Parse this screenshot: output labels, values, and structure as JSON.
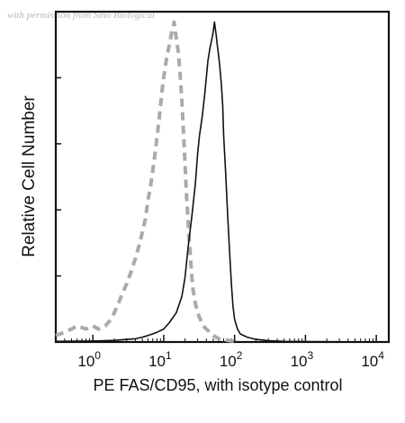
{
  "watermark": "with permission from Sino Biological",
  "chart_data": {
    "type": "line",
    "title": "",
    "xlabel": "PE FAS/CD95, with isotype control",
    "ylabel": "Relative Cell Number",
    "x_scale": "log",
    "xlim": [
      0.3,
      15000
    ],
    "ylim": [
      0,
      100
    ],
    "x_ticks": [
      {
        "value": 1,
        "base": "10",
        "exp": "0"
      },
      {
        "value": 10,
        "base": "10",
        "exp": "1"
      },
      {
        "value": 100,
        "base": "10",
        "exp": "2"
      },
      {
        "value": 1000,
        "base": "10",
        "exp": "3"
      },
      {
        "value": 10000,
        "base": "10",
        "exp": "4"
      }
    ],
    "grid": false,
    "colors": {
      "stained": "#111111",
      "isotype": "#aaaaaa",
      "frame": "#111111"
    },
    "series": [
      {
        "line_style": "solid",
        "color": "#111111",
        "x": [
          0.3,
          1,
          2,
          3,
          4,
          5,
          6,
          7,
          8,
          10,
          12,
          15,
          18,
          20,
          22,
          25,
          28,
          30,
          32,
          35,
          38,
          40,
          42,
          45,
          48,
          50,
          52,
          55,
          57,
          60,
          62,
          65,
          68,
          70,
          75,
          80,
          85,
          90,
          95,
          100,
          110,
          120,
          150,
          200,
          300,
          500,
          1000,
          15000
        ],
        "y": [
          0.2,
          0.3,
          0.5,
          0.8,
          1,
          1.5,
          2,
          2.5,
          3,
          4,
          6,
          9,
          14,
          20,
          29,
          39,
          49,
          58,
          64,
          70,
          77,
          82,
          87,
          91,
          94,
          96,
          99,
          95,
          92,
          88,
          85,
          80,
          73,
          64,
          52,
          39,
          28,
          18,
          11,
          7,
          4,
          2.5,
          1.5,
          0.8,
          0.4,
          0.2,
          0.1,
          0
        ]
      },
      {
        "line_style": "dashed",
        "color": "#aaaaaa",
        "x": [
          0.3,
          0.4,
          0.5,
          0.6,
          0.8,
          1,
          1.2,
          1.5,
          1.8,
          2,
          2.3,
          2.6,
          3,
          3.5,
          4,
          4.5,
          5,
          5.5,
          6,
          6.5,
          7,
          7.5,
          8,
          8.5,
          9,
          9.5,
          10,
          11,
          12,
          13,
          14,
          15,
          16,
          17,
          18,
          19,
          20,
          21,
          22,
          23,
          24,
          25,
          26,
          28,
          30,
          33,
          36,
          40,
          45,
          50,
          60,
          80,
          100
        ],
        "y": [
          2,
          3,
          4,
          5,
          4,
          5,
          4,
          5,
          7,
          9,
          12,
          15,
          18,
          22,
          26,
          30,
          34,
          38,
          44,
          48,
          53,
          58,
          63,
          68,
          73,
          78,
          82,
          88,
          92,
          96,
          99,
          94,
          90,
          83,
          75,
          65,
          55,
          45,
          38,
          31,
          25,
          20,
          16,
          12,
          9,
          7,
          5,
          4,
          3,
          2,
          1,
          0.5,
          0.2
        ]
      }
    ]
  }
}
